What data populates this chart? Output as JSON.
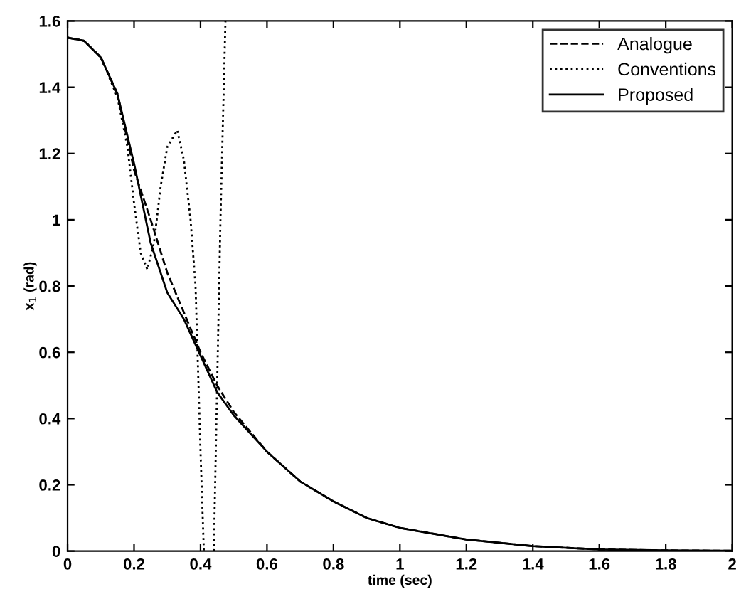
{
  "chart_data": {
    "type": "line",
    "xlabel": "time (sec)",
    "ylabel": "x$_{1}$ (rad)",
    "xlim": [
      0,
      2
    ],
    "ylim": [
      0,
      1.6
    ],
    "xticks": [
      0,
      0.2,
      0.4,
      0.6,
      0.8,
      1,
      1.2,
      1.4,
      1.6,
      1.8,
      2
    ],
    "yticks": [
      0,
      0.2,
      0.4,
      0.6,
      0.8,
      1,
      1.2,
      1.4,
      1.6
    ],
    "grid": false,
    "legend": "top right",
    "series": [
      {
        "name": "Analogue",
        "color": "#000000",
        "line_style": "dashed",
        "x": [
          0,
          0.05,
          0.1,
          0.15,
          0.2,
          0.25,
          0.3,
          0.35,
          0.4,
          0.45,
          0.5,
          0.6,
          0.7,
          0.8,
          0.9,
          1.0,
          1.2,
          1.4,
          1.6,
          1.8,
          2.0
        ],
        "values": [
          1.55,
          1.54,
          1.49,
          1.38,
          1.15,
          1.0,
          0.84,
          0.72,
          0.6,
          0.5,
          0.42,
          0.3,
          0.21,
          0.15,
          0.1,
          0.07,
          0.035,
          0.015,
          0.005,
          0.002,
          0.001
        ]
      },
      {
        "name": "Conventions",
        "color": "#000000",
        "line_style": "dotted",
        "x": [
          0,
          0.05,
          0.1,
          0.15,
          0.18,
          0.2,
          0.22,
          0.24,
          0.26,
          0.28,
          0.3,
          0.33,
          0.35,
          0.37,
          0.385,
          0.4,
          0.41,
          0.425,
          0.44,
          0.45,
          0.46,
          0.475
        ],
        "values": [
          1.55,
          1.54,
          1.49,
          1.37,
          1.22,
          1.05,
          0.9,
          0.85,
          0.93,
          1.1,
          1.22,
          1.27,
          1.18,
          1.0,
          0.8,
          0.3,
          0.0,
          null,
          0.0,
          0.5,
          1.0,
          1.6
        ]
      },
      {
        "name": "Proposed",
        "color": "#000000",
        "line_style": "solid",
        "x": [
          0,
          0.05,
          0.1,
          0.15,
          0.2,
          0.25,
          0.3,
          0.35,
          0.4,
          0.45,
          0.5,
          0.6,
          0.7,
          0.8,
          0.9,
          1.0,
          1.2,
          1.4,
          1.6,
          1.8,
          2.0
        ],
        "values": [
          1.55,
          1.54,
          1.49,
          1.38,
          1.17,
          0.93,
          0.78,
          0.7,
          0.59,
          0.48,
          0.41,
          0.3,
          0.21,
          0.15,
          0.1,
          0.07,
          0.035,
          0.015,
          0.005,
          0.002,
          0.001
        ]
      }
    ]
  }
}
